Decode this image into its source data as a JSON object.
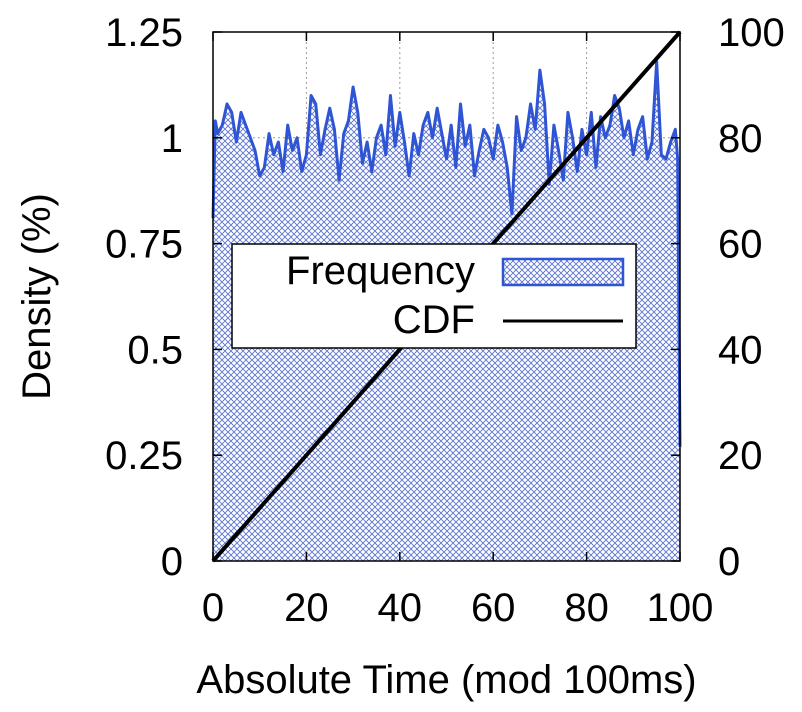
{
  "chart_data": {
    "type": "area",
    "xlabel": "Absolute Time (mod 100ms)",
    "ylabel": "Density (%)",
    "xlim": [
      0,
      100
    ],
    "ylim": [
      0,
      1.25
    ],
    "y2lim": [
      0,
      100
    ],
    "x_ticks": [
      "0",
      "20",
      "40",
      "60",
      "80",
      "100"
    ],
    "y_ticks": [
      "0",
      "0.25",
      "0.5",
      "0.75",
      "1",
      "1.25"
    ],
    "y2_ticks": [
      "0",
      "20",
      "40",
      "60",
      "80",
      "100"
    ],
    "grid": true,
    "legend_placement": "center-right",
    "series": [
      {
        "name": "Frequency",
        "axis": "left",
        "color": "#2f55d4",
        "fill": "crosshatch",
        "x": [
          0,
          0.5,
          1,
          2,
          3,
          4,
          5,
          6,
          7,
          8,
          9,
          10,
          11,
          12,
          13,
          14,
          15,
          16,
          17,
          18,
          19,
          20,
          21,
          22,
          23,
          24,
          25,
          26,
          27,
          28,
          29,
          30,
          31,
          32,
          33,
          34,
          35,
          36,
          37,
          38,
          39,
          40,
          41,
          42,
          43,
          44,
          45,
          46,
          47,
          48,
          49,
          50,
          51,
          52,
          53,
          54,
          55,
          56,
          57,
          58,
          59,
          60,
          61,
          62,
          63,
          64,
          65,
          66,
          67,
          68,
          69,
          70,
          71,
          72,
          73,
          74,
          75,
          76,
          77,
          78,
          79,
          80,
          81,
          82,
          83,
          84,
          85,
          86,
          87,
          88,
          89,
          90,
          91,
          92,
          93,
          94,
          95,
          96,
          97,
          98,
          99,
          99.5,
          100
        ],
        "values": [
          0.81,
          1.04,
          1.01,
          1.03,
          1.08,
          1.06,
          0.99,
          1.06,
          1.03,
          1.0,
          0.97,
          0.91,
          0.93,
          1.01,
          0.96,
          0.99,
          0.92,
          1.03,
          0.97,
          1.0,
          0.92,
          0.96,
          1.1,
          1.08,
          0.96,
          1.02,
          1.07,
          1.02,
          0.9,
          1.01,
          1.04,
          1.12,
          1.06,
          0.94,
          0.99,
          0.92,
          1.0,
          1.03,
          0.96,
          1.1,
          0.98,
          1.06,
          0.99,
          0.91,
          1.01,
          0.96,
          1.03,
          1.06,
          1.0,
          1.07,
          1.01,
          0.95,
          1.03,
          0.93,
          1.08,
          0.98,
          1.03,
          0.91,
          0.97,
          1.02,
          1.0,
          0.95,
          1.03,
          0.99,
          0.93,
          0.82,
          1.05,
          0.97,
          1.0,
          1.08,
          1.02,
          1.16,
          1.08,
          0.89,
          1.03,
          0.97,
          0.9,
          1.06,
          1.0,
          0.92,
          1.02,
          0.96,
          1.06,
          0.93,
          1.05,
          1.0,
          1.03,
          1.1,
          1.07,
          1.0,
          1.04,
          0.96,
          1.02,
          1.05,
          0.95,
          0.99,
          1.18,
          0.96,
          0.95,
          0.99,
          1.02,
          0.95,
          0.27
        ]
      },
      {
        "name": "CDF",
        "axis": "right",
        "color": "#000000",
        "x": [
          0,
          100
        ],
        "values": [
          0,
          100
        ]
      }
    ]
  }
}
